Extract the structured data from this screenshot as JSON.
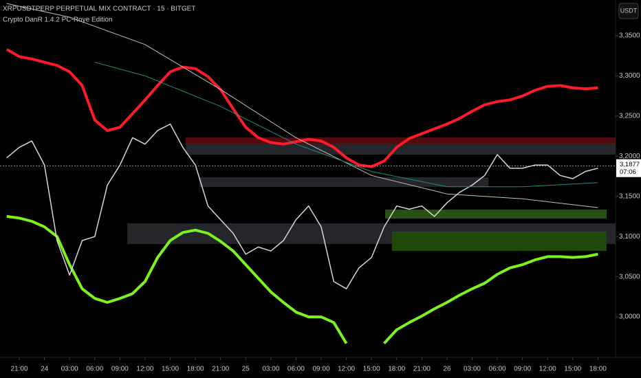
{
  "chart_data": {
    "type": "line",
    "title": "XRPUSDTPERP PERPETUAL MIX CONTRACT · 15 · BITGET",
    "subtitle": "Crypto DanR 1.4.2 PC-Roye Edition",
    "currency": "USDT",
    "last_price": {
      "value": 3.1877,
      "label": "3,1877"
    },
    "countdown": "07:06",
    "xlim": [
      -2.3,
      71.1
    ],
    "ylim": [
      2.9496,
      3.3944
    ],
    "yticks": [
      {
        "value": 3.0,
        "label": "3,0000"
      },
      {
        "value": 3.05,
        "label": "3,0500"
      },
      {
        "value": 3.1,
        "label": "3,1000"
      },
      {
        "value": 3.15,
        "label": "3,1500"
      },
      {
        "value": 3.2,
        "label": "3,2000"
      },
      {
        "value": 3.25,
        "label": "3,2500"
      },
      {
        "value": 3.3,
        "label": "3,3000"
      },
      {
        "value": 3.35,
        "label": "3,3500"
      }
    ],
    "xticks": [
      {
        "value": 0,
        "label": "21:00"
      },
      {
        "value": 3,
        "label": "24"
      },
      {
        "value": 6,
        "label": "03:00"
      },
      {
        "value": 9,
        "label": "06:00"
      },
      {
        "value": 12,
        "label": "09:00"
      },
      {
        "value": 15,
        "label": "12:00"
      },
      {
        "value": 18,
        "label": "15:00"
      },
      {
        "value": 21,
        "label": "18:00"
      },
      {
        "value": 24,
        "label": "21:00"
      },
      {
        "value": 27,
        "label": "25"
      },
      {
        "value": 30,
        "label": "03:00"
      },
      {
        "value": 33,
        "label": "06:00"
      },
      {
        "value": 36,
        "label": "09:00"
      },
      {
        "value": 39,
        "label": "12:00"
      },
      {
        "value": 42,
        "label": "15:00"
      },
      {
        "value": 45,
        "label": "18:00"
      },
      {
        "value": 48,
        "label": "21:00"
      },
      {
        "value": 51,
        "label": "26"
      },
      {
        "value": 54,
        "label": "03:00"
      },
      {
        "value": 57,
        "label": "06:00"
      },
      {
        "value": 60,
        "label": "09:00"
      },
      {
        "value": 63,
        "label": "12:00"
      },
      {
        "value": 66,
        "label": "15:00"
      },
      {
        "value": 69,
        "label": "18:00"
      }
    ],
    "x": [
      -1.5,
      0,
      1.5,
      3,
      4.5,
      6,
      7.5,
      9,
      10.5,
      12,
      13.5,
      15,
      16.5,
      18,
      19.5,
      21,
      22.5,
      24,
      25.5,
      27,
      28.5,
      30,
      31.5,
      33,
      34.5,
      36,
      37.5,
      39,
      40.5,
      42,
      43.5,
      45,
      46.5,
      48,
      49.5,
      51,
      52.5,
      54,
      55.5,
      57,
      58.5,
      60,
      61.5,
      63,
      64.5,
      66,
      67.5,
      69
    ],
    "series": [
      {
        "color": "#ff1a2a",
        "width": 4,
        "values": [
          3.333,
          3.324,
          3.321,
          3.317,
          3.313,
          3.305,
          3.288,
          3.245,
          3.232,
          3.236,
          3.253,
          3.27,
          3.288,
          3.305,
          3.311,
          3.309,
          3.299,
          3.283,
          3.259,
          3.236,
          3.223,
          3.217,
          3.215,
          3.218,
          3.221,
          3.219,
          3.211,
          3.198,
          3.189,
          3.187,
          3.194,
          3.211,
          3.222,
          3.228,
          3.234,
          3.24,
          3.247,
          3.256,
          3.264,
          3.268,
          3.27,
          3.275,
          3.282,
          3.287,
          3.288,
          3.285,
          3.284,
          3.285
        ]
      },
      {
        "color": "#7cf21e",
        "width": 4,
        "values": [
          3.125,
          3.123,
          3.119,
          3.112,
          3.1,
          3.065,
          3.035,
          3.023,
          3.018,
          3.023,
          3.029,
          3.044,
          3.074,
          3.095,
          3.105,
          3.108,
          3.104,
          3.094,
          3.082,
          3.065,
          3.048,
          3.031,
          3.018,
          3.006,
          3.0,
          3.0,
          2.993,
          2.967,
          null,
          null,
          2.967,
          2.984,
          2.993,
          3.001,
          3.01,
          3.018,
          3.027,
          3.035,
          3.042,
          3.053,
          3.061,
          3.065,
          3.071,
          3.075,
          3.075,
          3.074,
          3.075,
          3.078
        ]
      },
      {
        "color": "#d8d8d8",
        "width": 1.5,
        "values": [
          3.198,
          3.211,
          3.219,
          3.189,
          3.095,
          3.052,
          3.095,
          3.1,
          3.164,
          3.189,
          3.223,
          3.215,
          3.232,
          3.24,
          3.211,
          3.189,
          3.138,
          3.121,
          3.104,
          3.078,
          3.087,
          3.082,
          3.095,
          3.121,
          3.138,
          3.112,
          3.044,
          3.035,
          3.061,
          3.074,
          3.112,
          3.138,
          3.134,
          3.138,
          3.125,
          3.142,
          3.155,
          3.164,
          3.176,
          3.202,
          3.185,
          3.185,
          3.189,
          3.189,
          3.176,
          3.172,
          3.181,
          3.185
        ]
      },
      {
        "color": "#c9c2b4",
        "width": 1,
        "x": [
          -1.5,
          6,
          15,
          24,
          33,
          42,
          51,
          60,
          69
        ],
        "values": [
          3.39,
          3.373,
          3.339,
          3.283,
          3.223,
          3.176,
          3.153,
          3.147,
          3.136
        ]
      },
      {
        "color": "#1d8c86",
        "width": 1,
        "x": [
          9,
          15,
          24,
          33,
          42,
          51,
          60,
          69
        ],
        "values": [
          3.317,
          3.3,
          3.262,
          3.215,
          3.181,
          3.162,
          3.162,
          3.167
        ]
      }
    ]
  }
}
